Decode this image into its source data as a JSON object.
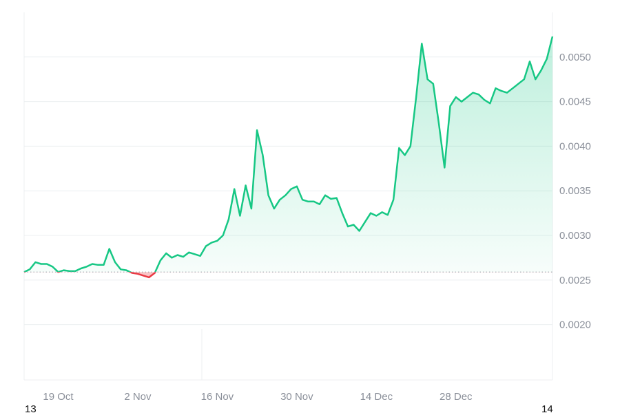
{
  "chart_data": {
    "type": "area",
    "title": "",
    "xlabel": "",
    "ylabel": "",
    "x_tick_labels": [
      "19 Oct",
      "2 Nov",
      "16 Nov",
      "30 Nov",
      "14 Dec",
      "28 Dec"
    ],
    "x_edge_labels": {
      "left": "13",
      "right": "14"
    },
    "y_tick_labels": [
      "0.0020",
      "0.0025",
      "0.0030",
      "0.0035",
      "0.0040",
      "0.0045",
      "0.0050"
    ],
    "y_ticks": [
      0.002,
      0.0025,
      0.003,
      0.0035,
      0.004,
      0.0045,
      0.005
    ],
    "ylim": [
      0.00138,
      0.0055
    ],
    "xlim": [
      "2023-10-13",
      "2024-01-14"
    ],
    "baseline": 0.00259,
    "grid": true,
    "legend": "none",
    "colors": {
      "up": "#16c784",
      "down": "#ea3943",
      "grid": "#eceff1",
      "tick": "#8a8f99",
      "baseline": "#a0a4aa"
    },
    "series": [
      {
        "x": [
          "2023-10-13",
          "2023-10-14",
          "2023-10-15",
          "2023-10-16",
          "2023-10-17",
          "2023-10-18",
          "2023-10-19",
          "2023-10-20",
          "2023-10-21",
          "2023-10-22",
          "2023-10-23",
          "2023-10-24",
          "2023-10-25",
          "2023-10-26",
          "2023-10-27",
          "2023-10-28",
          "2023-10-29",
          "2023-10-30",
          "2023-10-31",
          "2023-11-01",
          "2023-11-02",
          "2023-11-03",
          "2023-11-04",
          "2023-11-05",
          "2023-11-06",
          "2023-11-07",
          "2023-11-08",
          "2023-11-09",
          "2023-11-10",
          "2023-11-11",
          "2023-11-12",
          "2023-11-13",
          "2023-11-14",
          "2023-11-15",
          "2023-11-16",
          "2023-11-17",
          "2023-11-18",
          "2023-11-19",
          "2023-11-20",
          "2023-11-21",
          "2023-11-22",
          "2023-11-23",
          "2023-11-24",
          "2023-11-25",
          "2023-11-26",
          "2023-11-27",
          "2023-11-28",
          "2023-11-29",
          "2023-11-30",
          "2023-12-01",
          "2023-12-02",
          "2023-12-03",
          "2023-12-04",
          "2023-12-05",
          "2023-12-06",
          "2023-12-07",
          "2023-12-08",
          "2023-12-09",
          "2023-12-10",
          "2023-12-11",
          "2023-12-12",
          "2023-12-13",
          "2023-12-14",
          "2023-12-15",
          "2023-12-16",
          "2023-12-17",
          "2023-12-18",
          "2023-12-19",
          "2023-12-20",
          "2023-12-21",
          "2023-12-22",
          "2023-12-23",
          "2023-12-24",
          "2023-12-25",
          "2023-12-26",
          "2023-12-27",
          "2023-12-28",
          "2023-12-29",
          "2023-12-30",
          "2023-12-31",
          "2024-01-01",
          "2024-01-02",
          "2024-01-03",
          "2024-01-04",
          "2024-01-05",
          "2024-01-06",
          "2024-01-07",
          "2024-01-08",
          "2024-01-09",
          "2024-01-10",
          "2024-01-11",
          "2024-01-12",
          "2024-01-13",
          "2024-01-14"
        ],
        "values": [
          0.00259,
          0.00262,
          0.0027,
          0.00268,
          0.00268,
          0.00265,
          0.00259,
          0.00261,
          0.0026,
          0.0026,
          0.00263,
          0.00265,
          0.00268,
          0.00267,
          0.00267,
          0.00285,
          0.0027,
          0.00262,
          0.00261,
          0.00258,
          0.00257,
          0.00255,
          0.00253,
          0.00258,
          0.00272,
          0.0028,
          0.00275,
          0.00278,
          0.00276,
          0.00281,
          0.00279,
          0.00277,
          0.00288,
          0.00292,
          0.00294,
          0.003,
          0.00318,
          0.00352,
          0.00322,
          0.00356,
          0.0033,
          0.00418,
          0.0039,
          0.00345,
          0.0033,
          0.0034,
          0.00345,
          0.00352,
          0.00355,
          0.0034,
          0.00338,
          0.00338,
          0.00335,
          0.00345,
          0.00341,
          0.00342,
          0.00325,
          0.0031,
          0.00312,
          0.00305,
          0.00315,
          0.00325,
          0.00322,
          0.00326,
          0.00323,
          0.0034,
          0.00398,
          0.0039,
          0.004,
          0.00455,
          0.00515,
          0.00475,
          0.0047,
          0.00425,
          0.00376,
          0.00445,
          0.00455,
          0.0045,
          0.00455,
          0.0046,
          0.00458,
          0.00452,
          0.00448,
          0.00465,
          0.00462,
          0.0046,
          0.00465,
          0.0047,
          0.00475,
          0.00495,
          0.00475,
          0.00485,
          0.00498,
          0.00523
        ]
      }
    ]
  }
}
